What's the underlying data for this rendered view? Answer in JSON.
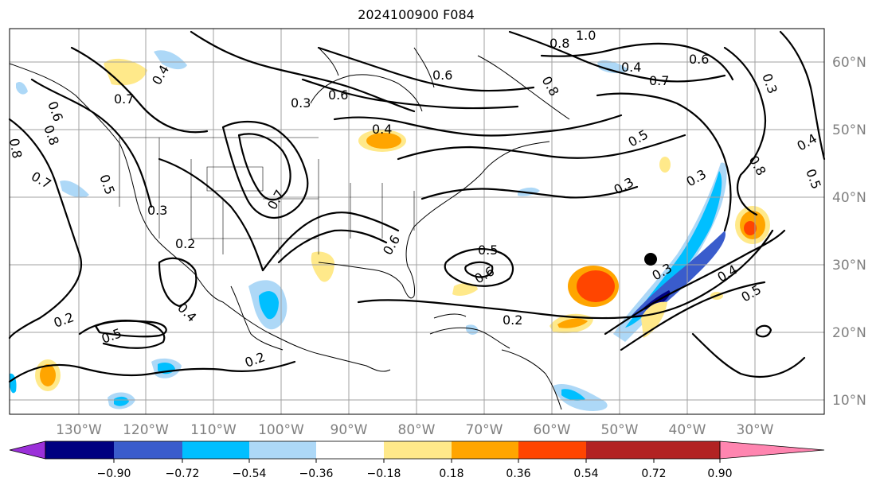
{
  "title": "2024100900 F084",
  "lat_labels": [
    "60°N",
    "50°N",
    "40°N",
    "30°N",
    "20°N",
    "10°N"
  ],
  "lon_labels": [
    "130°W",
    "120°W",
    "110°W",
    "100°W",
    "90°W",
    "80°W",
    "70°W",
    "60°W",
    "50°W",
    "40°W",
    "30°W"
  ],
  "colorbar": {
    "colors": [
      "#9b30d9",
      "#000080",
      "#3a5ccc",
      "#00bfff",
      "#add8f7",
      "#ffffff",
      "#ffe98a",
      "#ffa500",
      "#ff4500",
      "#b22222",
      "#ff85b0"
    ],
    "tick_labels": [
      "−0.90",
      "−0.72",
      "−0.54",
      "−0.36",
      "−0.18",
      "0.18",
      "0.36",
      "0.54",
      "0.72",
      "0.90"
    ]
  },
  "contour_labels": [
    "0.4",
    "0.7",
    "0.8",
    "0.6",
    "0.8",
    "0.7",
    "0.5",
    "0.3",
    "0.7",
    "0.3",
    "0.6",
    "0.4",
    "0.6",
    "0.8",
    "1.0",
    "0.8",
    "0.4",
    "0.6",
    "0.7",
    "0.3",
    "0.5",
    "0.3",
    "0.4",
    "0.8",
    "0.5",
    "0.3",
    "0.3",
    "0.2",
    "0.6",
    "0.5",
    "0.6",
    "0.2",
    "0.4",
    "0.5",
    "0.2",
    "0.4",
    "0.5",
    "0.2"
  ],
  "marker": "storm-center-dot"
}
